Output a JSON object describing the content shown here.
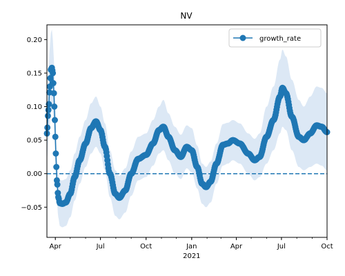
{
  "chart_data": {
    "type": "line",
    "title": "NV",
    "xlabel": "",
    "ylabel": "",
    "x_range": [
      "2020-03-15",
      "2021-10-01"
    ],
    "ylim": [
      -0.095,
      0.222
    ],
    "x_ticks": [
      {
        "date": "2020-04-01",
        "label": "Apr"
      },
      {
        "date": "2020-07-01",
        "label": "Jul"
      },
      {
        "date": "2020-10-01",
        "label": "Oct"
      },
      {
        "date": "2021-01-01",
        "label": "Jan"
      },
      {
        "date": "2021-04-01",
        "label": "Apr"
      },
      {
        "date": "2021-07-01",
        "label": "Jul"
      },
      {
        "date": "2021-10-01",
        "label": "Oct"
      }
    ],
    "x_year_label": {
      "date": "2021-01-01",
      "label": "2021"
    },
    "y_ticks": [
      -0.05,
      0.0,
      0.05,
      0.1,
      0.15,
      0.2
    ],
    "y_tick_labels": [
      "−0.05",
      "0.00",
      "0.05",
      "0.10",
      "0.15",
      "0.20"
    ],
    "reference_line": {
      "y": 0.0,
      "style": "dashed",
      "color": "#1f77b4"
    },
    "legend": {
      "position": "top-right",
      "entries": [
        "growth_rate"
      ]
    },
    "series": [
      {
        "name": "growth_rate",
        "color": "#1f77b4",
        "band_color": "#dce8f5",
        "points": [
          {
            "x": "2020-03-15",
            "y": 0.06,
            "lo": 0.02,
            "hi": 0.1
          },
          {
            "x": "2020-03-18",
            "y": 0.095,
            "lo": 0.05,
            "hi": 0.15
          },
          {
            "x": "2020-03-21",
            "y": 0.13,
            "lo": 0.07,
            "hi": 0.19
          },
          {
            "x": "2020-03-23",
            "y": 0.155,
            "lo": 0.09,
            "hi": 0.21
          },
          {
            "x": "2020-03-25",
            "y": 0.158,
            "lo": 0.1,
            "hi": 0.215
          },
          {
            "x": "2020-03-27",
            "y": 0.15,
            "lo": 0.09,
            "hi": 0.2
          },
          {
            "x": "2020-03-29",
            "y": 0.12,
            "lo": 0.07,
            "hi": 0.17
          },
          {
            "x": "2020-03-31",
            "y": 0.08,
            "lo": 0.04,
            "hi": 0.13
          },
          {
            "x": "2020-04-02",
            "y": 0.03,
            "lo": 0.0,
            "hi": 0.07
          },
          {
            "x": "2020-04-04",
            "y": -0.01,
            "lo": -0.04,
            "hi": 0.03
          },
          {
            "x": "2020-04-07",
            "y": -0.035,
            "lo": -0.065,
            "hi": 0.0
          },
          {
            "x": "2020-04-10",
            "y": -0.044,
            "lo": -0.078,
            "hi": -0.01
          },
          {
            "x": "2020-04-15",
            "y": -0.045,
            "lo": -0.08,
            "hi": -0.01
          },
          {
            "x": "2020-04-22",
            "y": -0.043,
            "lo": -0.078,
            "hi": -0.008
          },
          {
            "x": "2020-05-01",
            "y": -0.03,
            "lo": -0.065,
            "hi": 0.005
          },
          {
            "x": "2020-05-10",
            "y": -0.005,
            "lo": -0.04,
            "hi": 0.03
          },
          {
            "x": "2020-05-20",
            "y": 0.02,
            "lo": -0.015,
            "hi": 0.055
          },
          {
            "x": "2020-06-01",
            "y": 0.045,
            "lo": 0.01,
            "hi": 0.08
          },
          {
            "x": "2020-06-12",
            "y": 0.068,
            "lo": 0.03,
            "hi": 0.105
          },
          {
            "x": "2020-06-22",
            "y": 0.078,
            "lo": 0.04,
            "hi": 0.115
          },
          {
            "x": "2020-07-01",
            "y": 0.065,
            "lo": 0.03,
            "hi": 0.1
          },
          {
            "x": "2020-07-10",
            "y": 0.04,
            "lo": 0.005,
            "hi": 0.075
          },
          {
            "x": "2020-07-20",
            "y": 0.0,
            "lo": -0.035,
            "hi": 0.035
          },
          {
            "x": "2020-07-31",
            "y": -0.03,
            "lo": -0.063,
            "hi": 0.005
          },
          {
            "x": "2020-08-08",
            "y": -0.036,
            "lo": -0.068,
            "hi": -0.003
          },
          {
            "x": "2020-08-20",
            "y": -0.025,
            "lo": -0.058,
            "hi": 0.008
          },
          {
            "x": "2020-09-01",
            "y": 0.0,
            "lo": -0.033,
            "hi": 0.033
          },
          {
            "x": "2020-09-15",
            "y": 0.022,
            "lo": -0.01,
            "hi": 0.055
          },
          {
            "x": "2020-10-01",
            "y": 0.028,
            "lo": -0.005,
            "hi": 0.06
          },
          {
            "x": "2020-10-15",
            "y": 0.045,
            "lo": 0.012,
            "hi": 0.08
          },
          {
            "x": "2020-10-27",
            "y": 0.065,
            "lo": 0.03,
            "hi": 0.1
          },
          {
            "x": "2020-11-05",
            "y": 0.07,
            "lo": 0.035,
            "hi": 0.11
          },
          {
            "x": "2020-11-15",
            "y": 0.055,
            "lo": 0.02,
            "hi": 0.09
          },
          {
            "x": "2020-11-28",
            "y": 0.035,
            "lo": 0.0,
            "hi": 0.07
          },
          {
            "x": "2020-12-10",
            "y": 0.025,
            "lo": -0.008,
            "hi": 0.058
          },
          {
            "x": "2020-12-22",
            "y": 0.04,
            "lo": 0.008,
            "hi": 0.072
          },
          {
            "x": "2021-01-01",
            "y": 0.035,
            "lo": 0.002,
            "hi": 0.068
          },
          {
            "x": "2021-01-12",
            "y": 0.01,
            "lo": -0.022,
            "hi": 0.042
          },
          {
            "x": "2021-01-22",
            "y": -0.015,
            "lo": -0.045,
            "hi": 0.015
          },
          {
            "x": "2021-01-30",
            "y": -0.02,
            "lo": -0.05,
            "hi": 0.01
          },
          {
            "x": "2021-02-08",
            "y": -0.012,
            "lo": -0.043,
            "hi": 0.018
          },
          {
            "x": "2021-02-20",
            "y": 0.015,
            "lo": -0.015,
            "hi": 0.045
          },
          {
            "x": "2021-03-05",
            "y": 0.043,
            "lo": 0.012,
            "hi": 0.074
          },
          {
            "x": "2021-03-15",
            "y": 0.045,
            "lo": 0.015,
            "hi": 0.076
          },
          {
            "x": "2021-03-25",
            "y": 0.05,
            "lo": 0.02,
            "hi": 0.08
          },
          {
            "x": "2021-04-08",
            "y": 0.045,
            "lo": 0.015,
            "hi": 0.075
          },
          {
            "x": "2021-04-25",
            "y": 0.03,
            "lo": 0.0,
            "hi": 0.06
          },
          {
            "x": "2021-05-08",
            "y": 0.02,
            "lo": -0.01,
            "hi": 0.052
          },
          {
            "x": "2021-05-18",
            "y": 0.025,
            "lo": -0.005,
            "hi": 0.06
          },
          {
            "x": "2021-06-01",
            "y": 0.055,
            "lo": 0.015,
            "hi": 0.1
          },
          {
            "x": "2021-06-15",
            "y": 0.08,
            "lo": 0.035,
            "hi": 0.13
          },
          {
            "x": "2021-06-28",
            "y": 0.115,
            "lo": 0.06,
            "hi": 0.17
          },
          {
            "x": "2021-07-03",
            "y": 0.128,
            "lo": 0.07,
            "hi": 0.185
          },
          {
            "x": "2021-07-10",
            "y": 0.12,
            "lo": 0.065,
            "hi": 0.175
          },
          {
            "x": "2021-07-22",
            "y": 0.085,
            "lo": 0.035,
            "hi": 0.14
          },
          {
            "x": "2021-08-05",
            "y": 0.055,
            "lo": 0.01,
            "hi": 0.11
          },
          {
            "x": "2021-08-15",
            "y": 0.05,
            "lo": 0.005,
            "hi": 0.1
          },
          {
            "x": "2021-08-28",
            "y": 0.06,
            "lo": 0.01,
            "hi": 0.115
          },
          {
            "x": "2021-09-10",
            "y": 0.072,
            "lo": 0.015,
            "hi": 0.13
          },
          {
            "x": "2021-09-20",
            "y": 0.07,
            "lo": 0.012,
            "hi": 0.128
          },
          {
            "x": "2021-10-01",
            "y": 0.062,
            "lo": 0.005,
            "hi": 0.12
          }
        ]
      }
    ]
  }
}
